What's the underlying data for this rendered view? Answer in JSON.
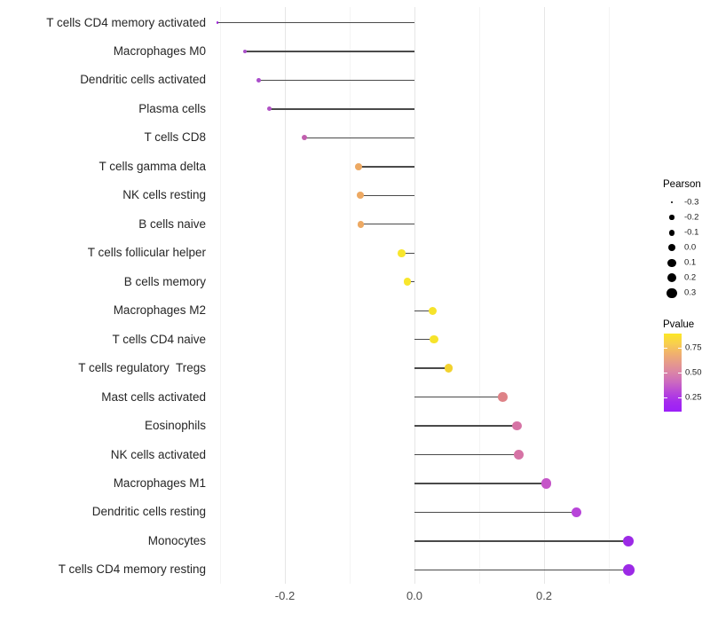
{
  "chart_data": {
    "type": "lollipop",
    "orientation": "horizontal",
    "title": "",
    "xlabel": "",
    "ylabel": "",
    "x_axis": {
      "tick_labels": [
        "-0.2",
        "0.0",
        "0.2"
      ],
      "tick_values": [
        -0.2,
        0.0,
        0.2
      ],
      "minor_tick_values": [
        -0.3,
        -0.1,
        0.1,
        0.3
      ],
      "range": [
        -0.336,
        0.363
      ],
      "grid": "on"
    },
    "categories": [
      "T cells CD4 memory activated",
      "Macrophages M0",
      "Dendritic cells activated",
      "Plasma cells",
      "T cells CD8",
      "T cells gamma delta",
      "NK cells resting",
      "B cells naive",
      "T cells follicular helper",
      "B cells memory",
      "Macrophages M2",
      "T cells CD4 naive",
      "T cells regulatory  Tregs",
      "Mast cells activated",
      "Eosinophils",
      "NK cells activated",
      "Macrophages M1",
      "Dendritic cells resting",
      "Monocytes",
      "T cells CD4 memory resting"
    ],
    "series": [
      {
        "name": "Pearson",
        "values": [
          -0.304,
          -0.262,
          -0.24,
          -0.224,
          -0.17,
          -0.086,
          -0.084,
          -0.083,
          -0.02,
          -0.011,
          0.028,
          0.03,
          0.053,
          0.136,
          0.158,
          0.161,
          0.203,
          0.25,
          0.33,
          0.331
        ]
      }
    ],
    "point_colors": [
      "#9d22d6",
      "#a94fc9",
      "#aa4ecb",
      "#b152c5",
      "#c15fae",
      "#eda963",
      "#eda963",
      "#eda963",
      "#f8e62c",
      "#f8e62c",
      "#f6e32b",
      "#f6e32b",
      "#f2d22e",
      "#de8287",
      "#d673a5",
      "#d673a5",
      "#c556c8",
      "#b845d9",
      "#9c2ae6",
      "#9c2ae6"
    ],
    "stem_color": "#4a4a4a",
    "legend_size": {
      "title": "Pearson",
      "entry_labels": [
        "-0.3",
        "-0.2",
        "-0.1",
        "0.0",
        "0.1",
        "0.2",
        "0.3"
      ],
      "entry_values": [
        -0.3,
        -0.2,
        -0.1,
        0.0,
        0.1,
        0.2,
        0.3
      ],
      "dot_color": "#000000",
      "position": "right"
    },
    "legend_color": {
      "title": "Pvalue",
      "tick_labels": [
        "0.75",
        "0.50",
        "0.25"
      ],
      "tick_values": [
        0.75,
        0.5,
        0.25
      ],
      "gradient_top_to_bottom": [
        "#fce724",
        "#f8cf4e",
        "#f1b26c",
        "#e69a8b",
        "#da84a7",
        "#cb69c0",
        "#b847d9",
        "#a52bee",
        "#9c1ff8"
      ],
      "position": "right"
    }
  }
}
